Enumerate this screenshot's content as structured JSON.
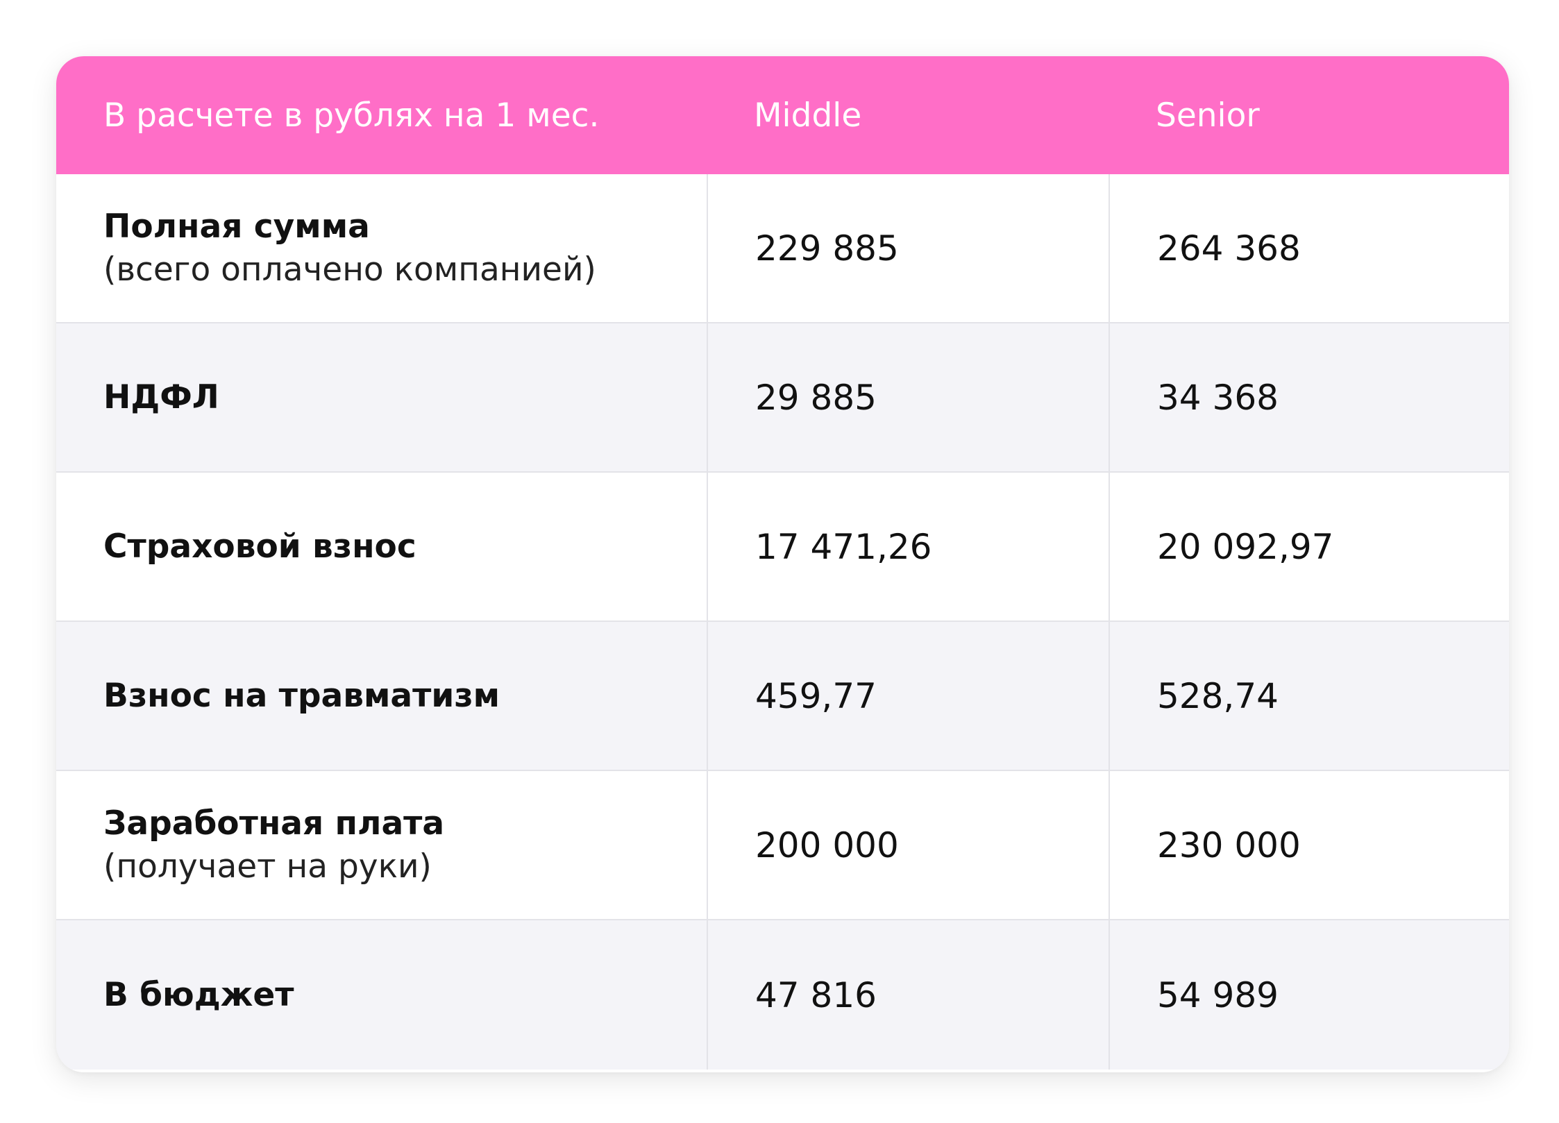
{
  "header": {
    "label": "В расчете в рублях на 1 мес.",
    "col_middle": "Middle",
    "col_senior": "Senior"
  },
  "rows": [
    {
      "label": "Полная сумма",
      "note": "(всего оплачено компанией)",
      "middle": "229 885",
      "senior": "264 368"
    },
    {
      "label": "НДФЛ",
      "note": "",
      "middle": "29 885",
      "senior": "34 368"
    },
    {
      "label": "Страховой взнос",
      "note": "",
      "middle": "17 471,26",
      "senior": "20 092,97"
    },
    {
      "label": "Взнос на травматизм",
      "note": "",
      "middle": "459,77",
      "senior": "528,74"
    },
    {
      "label": "Заработная плата",
      "note": "(получает на руки)",
      "middle": "200 000",
      "senior": "230 000"
    },
    {
      "label": "В бюджет",
      "note": "",
      "middle": "47 816",
      "senior": "54 989"
    }
  ],
  "colors": {
    "header_bg": "#ff6ec7",
    "header_text": "#ffffff",
    "row_alt_bg": "#f4f4f8"
  }
}
